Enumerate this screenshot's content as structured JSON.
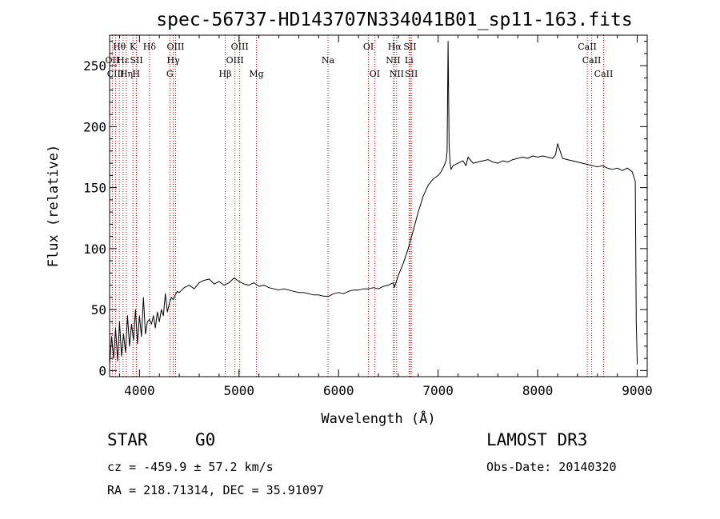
{
  "chart_data": {
    "type": "line",
    "title": "spec-56737-HD143707N334041B01_sp11-163.fits",
    "xlabel": "Wavelength (Å)",
    "ylabel": "Flux (relative)",
    "xlim": [
      3700,
      9100
    ],
    "ylim": [
      -5,
      275
    ],
    "xticks": [
      4000,
      5000,
      6000,
      7000,
      8000,
      9000
    ],
    "yticks": [
      0,
      50,
      100,
      150,
      200,
      250
    ],
    "line_color": "#000000",
    "marker_color": "#cc0000",
    "series": [
      {
        "name": "spectrum",
        "x": [
          3700,
          3720,
          3740,
          3760,
          3780,
          3800,
          3820,
          3840,
          3860,
          3880,
          3900,
          3920,
          3940,
          3960,
          3980,
          4000,
          4020,
          4040,
          4060,
          4080,
          4100,
          4120,
          4140,
          4160,
          4180,
          4200,
          4220,
          4240,
          4260,
          4280,
          4300,
          4320,
          4340,
          4360,
          4380,
          4400,
          4450,
          4500,
          4550,
          4600,
          4650,
          4700,
          4750,
          4800,
          4850,
          4900,
          4950,
          5000,
          5050,
          5100,
          5150,
          5200,
          5250,
          5300,
          5350,
          5400,
          5450,
          5500,
          5550,
          5600,
          5650,
          5700,
          5750,
          5800,
          5850,
          5900,
          5950,
          6000,
          6050,
          6100,
          6150,
          6200,
          6250,
          6300,
          6350,
          6400,
          6450,
          6500,
          6550,
          6560,
          6580,
          6600,
          6650,
          6700,
          6750,
          6800,
          6850,
          6900,
          6950,
          7000,
          7030,
          7060,
          7080,
          7090,
          7100,
          7110,
          7120,
          7130,
          7150,
          7200,
          7250,
          7280,
          7300,
          7350,
          7400,
          7450,
          7500,
          7550,
          7600,
          7650,
          7700,
          7750,
          7800,
          7850,
          7900,
          7950,
          8000,
          8050,
          8100,
          8150,
          8180,
          8200,
          8250,
          8300,
          8350,
          8400,
          8450,
          8500,
          8550,
          8600,
          8650,
          8700,
          8750,
          8800,
          8850,
          8900,
          8950,
          8980,
          8990,
          9000
        ],
        "y": [
          5,
          28,
          10,
          35,
          8,
          40,
          12,
          30,
          15,
          45,
          20,
          38,
          25,
          50,
          22,
          45,
          28,
          60,
          30,
          40,
          42,
          38,
          45,
          35,
          48,
          40,
          50,
          45,
          63,
          48,
          55,
          60,
          58,
          62,
          65,
          64,
          68,
          70,
          67,
          72,
          74,
          75,
          71,
          73,
          70,
          72,
          76,
          73,
          71,
          70,
          72,
          69,
          70,
          68,
          67,
          66,
          67,
          66,
          65,
          64,
          64,
          63,
          62,
          62,
          61,
          61,
          63,
          64,
          63,
          65,
          66,
          66,
          67,
          67,
          68,
          67,
          69,
          70,
          72,
          68,
          73,
          78,
          88,
          100,
          115,
          130,
          143,
          152,
          157,
          160,
          163,
          168,
          172,
          180,
          270,
          185,
          170,
          165,
          168,
          170,
          172,
          168,
          175,
          170,
          171,
          172,
          173,
          171,
          170,
          172,
          171,
          173,
          174,
          175,
          174,
          176,
          175,
          176,
          175,
          174,
          177,
          186,
          174,
          173,
          172,
          171,
          170,
          169,
          168,
          167,
          168,
          166,
          165,
          166,
          164,
          166,
          163,
          155,
          40,
          5
        ]
      }
    ],
    "lines": [
      {
        "label": "Hθ",
        "wave": 3798,
        "row": 1
      },
      {
        "label": "OII",
        "wave": 3727,
        "row": 2
      },
      {
        "label": "CIII",
        "wave": 3760,
        "row": 3
      },
      {
        "label": "Hε",
        "wave": 3835,
        "row": 2
      },
      {
        "label": "Hη",
        "wave": 3868,
        "row": 3
      },
      {
        "label": "K",
        "wave": 3934,
        "row": 1
      },
      {
        "label": "SII",
        "wave": 3970,
        "row": 2
      },
      {
        "label": "H",
        "wave": 3968,
        "row": 3
      },
      {
        "label": "Hδ",
        "wave": 4101,
        "row": 1
      },
      {
        "label": "OIII",
        "wave": 4363,
        "row": 1
      },
      {
        "label": "Hγ",
        "wave": 4340,
        "row": 2
      },
      {
        "label": "G",
        "wave": 4305,
        "row": 3
      },
      {
        "label": "OIII",
        "wave": 5007,
        "row": 1
      },
      {
        "label": "OIII",
        "wave": 4959,
        "row": 2
      },
      {
        "label": "Hβ",
        "wave": 4861,
        "row": 3
      },
      {
        "label": "Mg",
        "wave": 5175,
        "row": 3
      },
      {
        "label": "Na",
        "wave": 5894,
        "row": 2
      },
      {
        "label": "OI",
        "wave": 6300,
        "row": 1
      },
      {
        "label": "OI",
        "wave": 6363,
        "row": 3
      },
      {
        "label": "Hα",
        "wave": 6563,
        "row": 1
      },
      {
        "label": "NII",
        "wave": 6548,
        "row": 2
      },
      {
        "label": "NII",
        "wave": 6583,
        "row": 3
      },
      {
        "label": "SII",
        "wave": 6717,
        "row": 1
      },
      {
        "label": "Li",
        "wave": 6708,
        "row": 2
      },
      {
        "label": "SII",
        "wave": 6731,
        "row": 3
      },
      {
        "label": "CaII",
        "wave": 8498,
        "row": 1
      },
      {
        "label": "CaII",
        "wave": 8542,
        "row": 2
      },
      {
        "label": "CaII",
        "wave": 8662,
        "row": 3
      }
    ]
  },
  "info": {
    "object_class": "STAR",
    "subclass": "G0",
    "survey": "LAMOST DR3",
    "cz": "cz = -459.9 ± 57.2 km/s",
    "obs_date": "Obs-Date: 20140320",
    "coords": "RA = 218.71314, DEC =  35.91097"
  }
}
